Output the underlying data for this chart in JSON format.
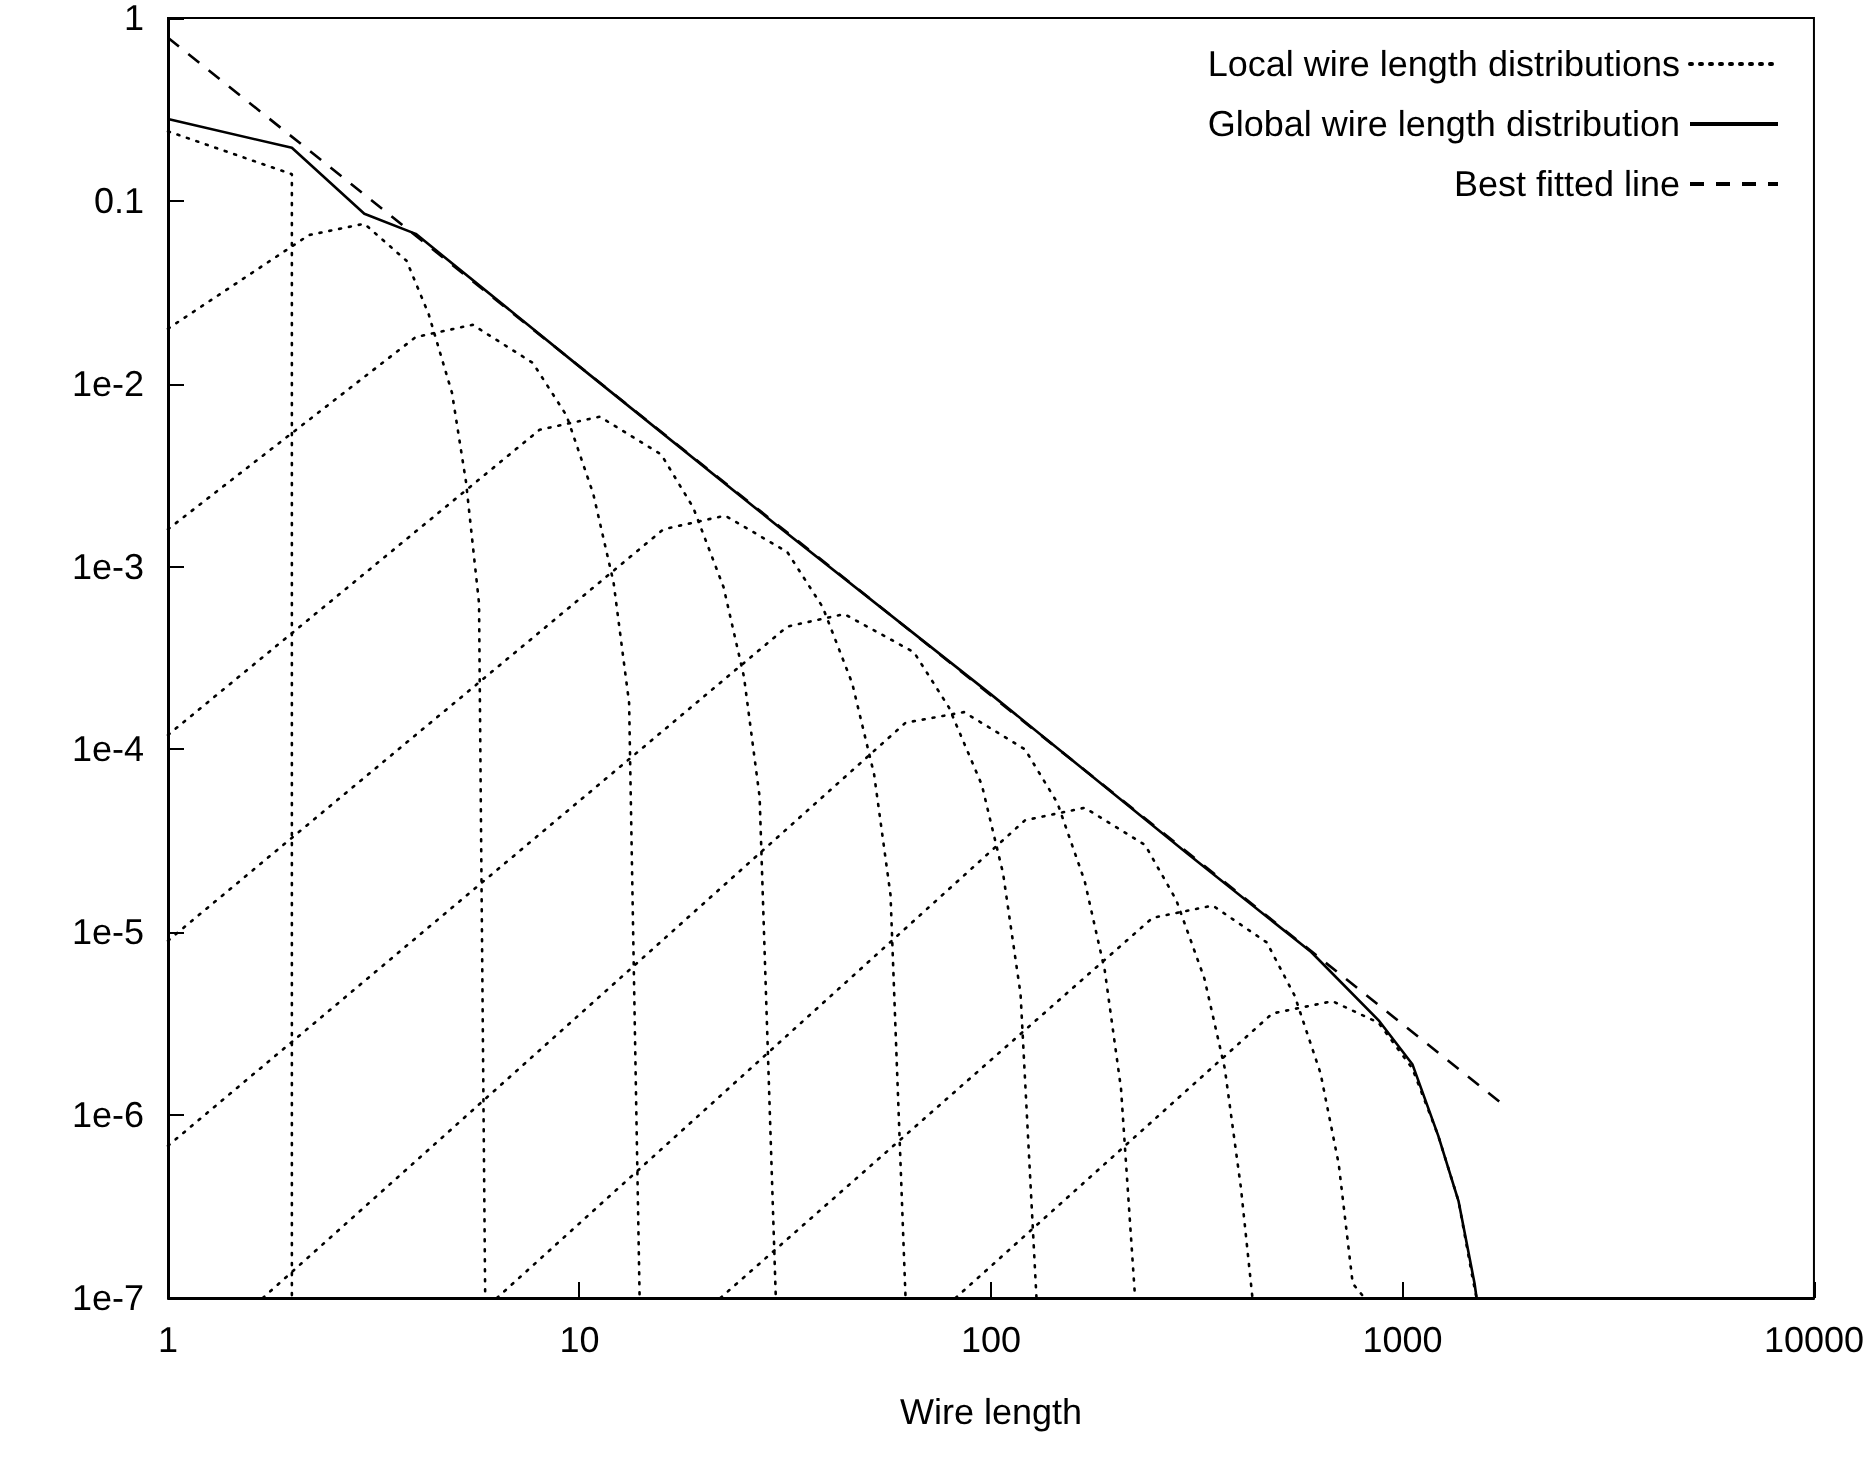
{
  "chart_data": {
    "type": "line",
    "xlabel": "Wire length",
    "log": "xy",
    "grid": false,
    "legend": "top right",
    "marker": "none",
    "xlim": [
      1,
      10000
    ],
    "xticks": [
      1,
      10,
      100,
      1000,
      10000
    ],
    "ylim": [
      1e-07,
      1
    ],
    "yticks": [
      {
        "value": 1e-07,
        "label": "1e-7"
      },
      {
        "value": 1e-06,
        "label": "1e-6"
      },
      {
        "value": 1e-05,
        "label": "1e-5"
      },
      {
        "value": 0.0001,
        "label": "1e-4"
      },
      {
        "value": 0.001,
        "label": "1e-3"
      },
      {
        "value": 0.01,
        "label": "1e-2"
      },
      0.1,
      1
    ],
    "series": [
      {
        "name": "Local wire length distributions",
        "color": "#000000",
        "line_style": "dotted",
        "x": [
          1,
          2,
          2
        ],
        "values": [
          0.24,
          0.14,
          1e-07
        ]
      },
      {
        "color": "#000000",
        "line_style": "dotted",
        "x": [
          1,
          2.2,
          3,
          3.8,
          4.3,
          4.9,
          5.3,
          5.7,
          5.9
        ],
        "values": [
          0.02,
          0.065,
          0.075,
          0.047,
          0.024,
          0.0089,
          0.0029,
          0.00063,
          1e-07
        ]
      },
      {
        "color": "#000000",
        "line_style": "dotted",
        "x": [
          1,
          4,
          5.5,
          7.7,
          9.3,
          10.8,
          12.1,
          13.2,
          14
        ],
        "values": [
          0.0016,
          0.018,
          0.021,
          0.013,
          0.0067,
          0.0025,
          0.00082,
          0.00018,
          1e-07
        ]
      },
      {
        "color": "#000000",
        "line_style": "dotted",
        "x": [
          1,
          8,
          11.2,
          15.8,
          18.9,
          22.4,
          25.1,
          27.4,
          30
        ],
        "values": [
          0.00012,
          0.0056,
          0.0066,
          0.0041,
          0.0021,
          0.00077,
          0.00025,
          5.5e-05,
          1e-07
        ]
      },
      {
        "color": "#000000",
        "line_style": "dotted",
        "x": [
          1,
          16,
          22.6,
          32,
          39,
          46,
          52,
          57,
          62
        ],
        "values": [
          9e-06,
          0.0016,
          0.0019,
          0.0012,
          0.0006,
          0.00023,
          7.3e-05,
          1.6e-05,
          1e-07
        ]
      },
      {
        "color": "#000000",
        "line_style": "dotted",
        "x": [
          1,
          32,
          44,
          65,
          79,
          95,
          107,
          118,
          129
        ],
        "values": [
          6.8e-07,
          0.00047,
          0.00055,
          0.00034,
          0.00017,
          6.4e-05,
          2.1e-05,
          4.6e-06,
          1e-07
        ]
      },
      {
        "color": "#000000",
        "line_style": "dotted",
        "x": [
          1.7,
          62,
          86,
          121,
          145,
          169,
          189,
          207,
          224
        ],
        "values": [
          1e-07,
          0.00014,
          0.00016,
          0.0001,
          5.1e-05,
          1.9e-05,
          6.2e-06,
          1.4e-06,
          1e-07
        ]
      },
      {
        "color": "#000000",
        "line_style": "dotted",
        "x": [
          6.3,
          121,
          169,
          237,
          282,
          330,
          370,
          405,
          432
        ],
        "values": [
          1e-07,
          4.1e-05,
          4.8e-05,
          3e-05,
          1.5e-05,
          5.6e-06,
          1.8e-06,
          4e-07,
          1e-07
        ]
      },
      {
        "color": "#000000",
        "line_style": "dotted",
        "x": [
          22,
          247,
          346,
          468,
          547,
          632,
          700,
          757,
          809
        ],
        "values": [
          1e-07,
          1.2e-05,
          1.4e-05,
          8.8e-06,
          4.5e-06,
          1.7e-06,
          5.4e-07,
          1.2e-07,
          1e-07
        ]
      },
      {
        "color": "#000000",
        "line_style": "dotted",
        "x": [
          82,
          483,
          676,
          875,
          1057,
          1222,
          1368,
          1479,
          1514
        ],
        "values": [
          1e-07,
          3.6e-06,
          4.2e-06,
          3.2e-06,
          1.8e-06,
          7.7e-07,
          3.4e-07,
          1.3e-07,
          1e-07
        ]
      },
      {
        "name": "Global wire length distribution",
        "color": "#000000",
        "line_style": "solid",
        "x": [
          1,
          2,
          3,
          4,
          10,
          30,
          100,
          300,
          600,
          875,
          1057,
          1222,
          1368,
          1497,
          1514
        ],
        "values": [
          0.28,
          0.195,
          0.085,
          0.066,
          0.0124,
          0.0017,
          0.0002,
          2.7e-05,
          7.8e-06,
          3.3e-06,
          1.9e-06,
          7.7e-07,
          3.4e-07,
          1.2e-07,
          1e-07
        ]
      },
      {
        "name": "Best fitted line",
        "color": "#000000",
        "line_style": "dashed",
        "x": [
          1,
          1750
        ],
        "values": [
          0.78,
          1.15e-06
        ]
      }
    ]
  }
}
